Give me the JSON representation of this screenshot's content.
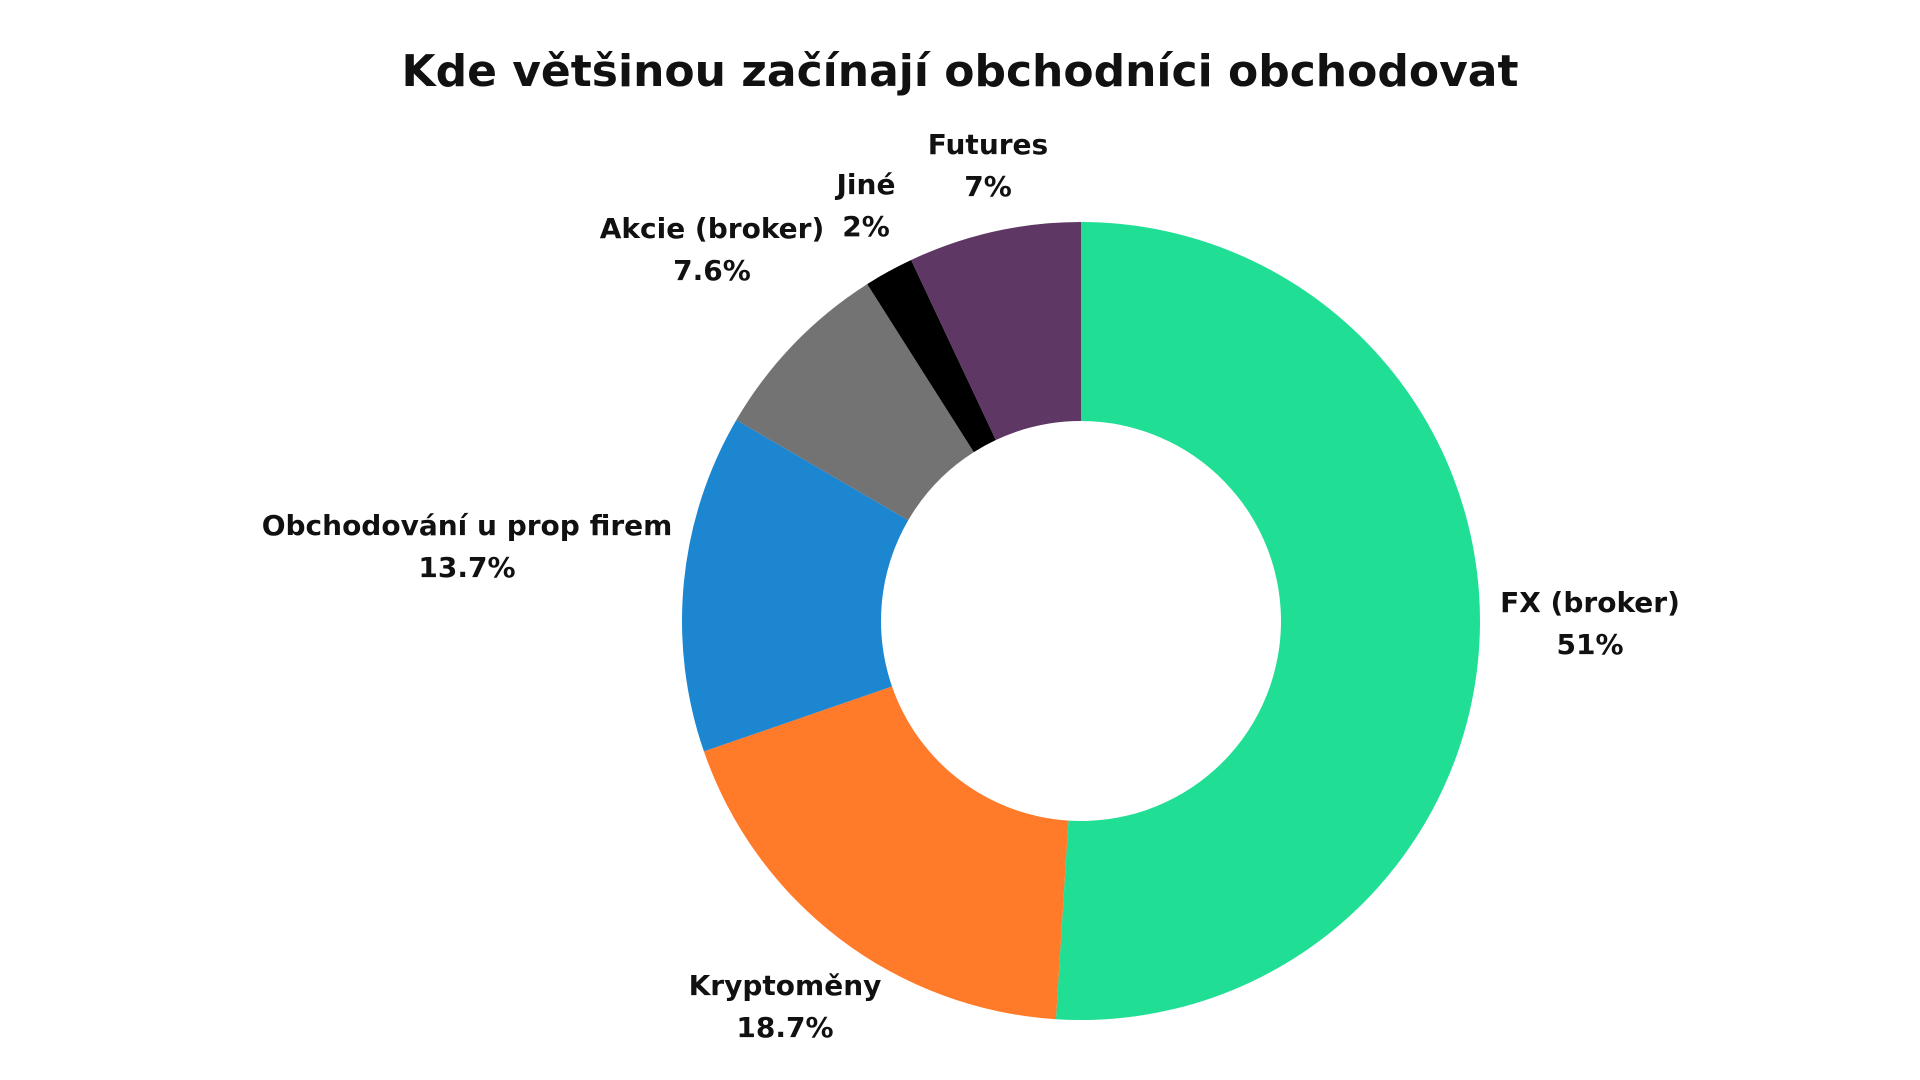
{
  "chart_data": {
    "type": "pie",
    "variant": "donut",
    "title": "Kde většinou začínají obchodníci obchodovat",
    "slices": [
      {
        "label": "FX (broker)",
        "value": 51,
        "value_label": "51%",
        "color": "#20DE94"
      },
      {
        "label": "Kryptoměny",
        "value": 18.7,
        "value_label": "18.7%",
        "color": "#FF7A29"
      },
      {
        "label": "Obchodování u prop firem",
        "value": 13.7,
        "value_label": "13.7%",
        "color": "#1C86D0"
      },
      {
        "label": "Akcie (broker)",
        "value": 7.6,
        "value_label": "7.6%",
        "color": "#737373"
      },
      {
        "label": "Jiné",
        "value": 2,
        "value_label": "2%",
        "color": "#000000"
      },
      {
        "label": "Futures",
        "value": 7,
        "value_label": "7%",
        "color": "#5E3764"
      }
    ],
    "start_angle": "12 o'clock",
    "direction": "clockwise",
    "legend": "none",
    "data_labels": "outside"
  }
}
